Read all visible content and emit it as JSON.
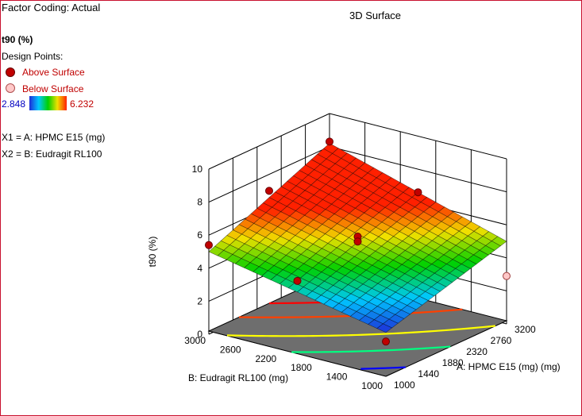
{
  "header": {
    "factor_coding": "Factor Coding: Actual",
    "title": "3D Surface"
  },
  "legend": {
    "response": "t90 (%)",
    "design_points_label": "Design Points:",
    "above_label": "Above Surface",
    "below_label": "Below Surface",
    "above_color": "#c00000",
    "below_color": "#ffc8c8",
    "scale_min": "2.848",
    "scale_max": "6.232",
    "scale_colors": [
      "#1e2cd8",
      "#00c8ff",
      "#00d000",
      "#f0e000",
      "#ff2000"
    ]
  },
  "factors": {
    "x1": "X1 = A: HPMC E15 (mg)",
    "x2": "X2 = B: Eudragit RL100"
  },
  "chart_data": {
    "type": "surface",
    "title": "3D Surface",
    "xlabel": "A: HPMC E15 (mg) (mg)",
    "ylabel": "B: Eudragit RL100 (mg)",
    "zlabel": "t90 (%)",
    "x_ticks": [
      "1000",
      "1440",
      "1880",
      "2320",
      "2760",
      "3200"
    ],
    "y_ticks": [
      "1000",
      "1400",
      "1800",
      "2200",
      "2600",
      "3000"
    ],
    "z_ticks": [
      "0",
      "2",
      "4",
      "6",
      "8",
      "10"
    ],
    "xlim": [
      1000,
      3200
    ],
    "ylim": [
      1000,
      3000
    ],
    "zlim": [
      0,
      10
    ],
    "surface_corners": {
      "x_min_y_min": 2.85,
      "x_max_y_min": 5.0,
      "x_min_y_max": 5.0,
      "x_max_y_max": 8.2
    },
    "design_points": [
      {
        "x": 1000,
        "y": 1000,
        "z": 2.3,
        "position": "above"
      },
      {
        "x": 1000,
        "y": 2000,
        "z": 4.6,
        "position": "above"
      },
      {
        "x": 1000,
        "y": 3000,
        "z": 5.4,
        "position": "above"
      },
      {
        "x": 2100,
        "y": 2000,
        "z": 5.6,
        "position": "above"
      },
      {
        "x": 2100,
        "y": 2000,
        "z": 5.3,
        "position": "above"
      },
      {
        "x": 2100,
        "y": 3000,
        "z": 7.0,
        "position": "above"
      },
      {
        "x": 3200,
        "y": 1000,
        "z": 2.9,
        "position": "below"
      },
      {
        "x": 3200,
        "y": 2000,
        "z": 6.6,
        "position": "above"
      },
      {
        "x": 3200,
        "y": 3000,
        "z": 8.3,
        "position": "above"
      }
    ],
    "contour_levels": [
      {
        "value": 3.2,
        "color": "#0000ff"
      },
      {
        "value": 4.0,
        "color": "#00ff80"
      },
      {
        "value": 4.8,
        "color": "#ffff00"
      },
      {
        "value": 5.8,
        "color": "#ff4000"
      },
      {
        "value": 6.6,
        "color": "#ff0000"
      }
    ],
    "grid": true
  }
}
